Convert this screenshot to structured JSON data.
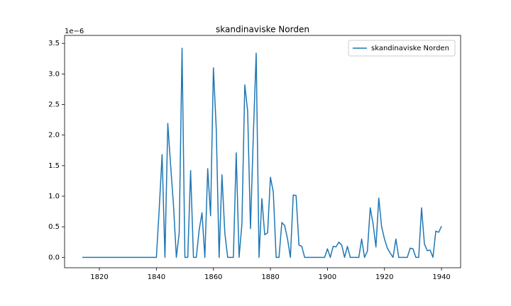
{
  "chart_data": {
    "type": "line",
    "title": "skandinaviske Norden",
    "y_offset_label": "1e−6",
    "x": [
      1814,
      1815,
      1816,
      1817,
      1818,
      1819,
      1820,
      1821,
      1822,
      1823,
      1824,
      1825,
      1826,
      1827,
      1828,
      1829,
      1830,
      1831,
      1832,
      1833,
      1834,
      1835,
      1836,
      1837,
      1838,
      1839,
      1840,
      1841,
      1842,
      1843,
      1844,
      1845,
      1846,
      1847,
      1848,
      1849,
      1850,
      1851,
      1852,
      1853,
      1854,
      1855,
      1856,
      1857,
      1858,
      1859,
      1860,
      1861,
      1862,
      1863,
      1864,
      1865,
      1866,
      1867,
      1868,
      1869,
      1870,
      1871,
      1872,
      1873,
      1874,
      1875,
      1876,
      1877,
      1878,
      1879,
      1880,
      1881,
      1882,
      1883,
      1884,
      1885,
      1886,
      1887,
      1888,
      1889,
      1890,
      1891,
      1892,
      1893,
      1894,
      1895,
      1896,
      1897,
      1898,
      1899,
      1900,
      1901,
      1902,
      1903,
      1904,
      1905,
      1906,
      1907,
      1908,
      1909,
      1910,
      1911,
      1912,
      1913,
      1914,
      1915,
      1916,
      1917,
      1918,
      1919,
      1920,
      1921,
      1922,
      1923,
      1924,
      1925,
      1926,
      1927,
      1928,
      1929,
      1930,
      1931,
      1932,
      1933,
      1934,
      1935,
      1936,
      1937,
      1938,
      1939,
      1940
    ],
    "series": [
      {
        "name": "skandinaviske Norden",
        "color": "#1f77b4",
        "values": [
          0,
          0,
          0,
          0,
          0,
          0,
          0,
          0,
          0,
          0,
          0,
          0,
          0,
          0,
          0,
          0,
          0,
          0,
          0,
          0,
          0,
          0,
          0,
          0,
          0,
          0,
          0,
          0.8,
          1.68,
          0,
          2.19,
          1.5,
          0.85,
          0,
          0.4,
          3.42,
          0,
          0,
          1.42,
          0,
          0,
          0.45,
          0.73,
          0,
          1.45,
          0.68,
          3.1,
          2.1,
          0,
          1.35,
          0.4,
          0,
          0,
          0,
          1.71,
          0,
          0.55,
          2.82,
          2.4,
          0.47,
          2.0,
          3.34,
          0,
          0.96,
          0.37,
          0.4,
          1.31,
          1.07,
          0,
          0,
          0.57,
          0.52,
          0.3,
          0,
          1.02,
          1.01,
          0.2,
          0.18,
          0,
          0,
          0,
          0,
          0,
          0,
          0,
          0,
          0.14,
          0,
          0.18,
          0.17,
          0.25,
          0.2,
          0,
          0.18,
          0,
          0,
          0,
          0,
          0.3,
          0,
          0.1,
          0.81,
          0.55,
          0.17,
          0.97,
          0.5,
          0.3,
          0.15,
          0.07,
          0,
          0.3,
          0,
          0,
          0,
          0,
          0.15,
          0.14,
          0,
          0,
          0.81,
          0.22,
          0.11,
          0.12,
          0,
          0.43,
          0.41,
          0.51
        ]
      }
    ],
    "xlim": [
      1807.8,
      1946.7
    ],
    "xticks": [
      1820,
      1840,
      1860,
      1880,
      1900,
      1920,
      1940
    ],
    "ylim": [
      -0.17,
      3.63
    ],
    "yticks": [
      {
        "value": 0,
        "label": "0.0"
      },
      0.5,
      {
        "value": 1,
        "label": "1.0"
      },
      1.5,
      {
        "value": 2,
        "label": "2.0"
      },
      2.5,
      {
        "value": 3,
        "label": "3.0"
      },
      3.5
    ],
    "grid": false,
    "legend": "upper right"
  }
}
